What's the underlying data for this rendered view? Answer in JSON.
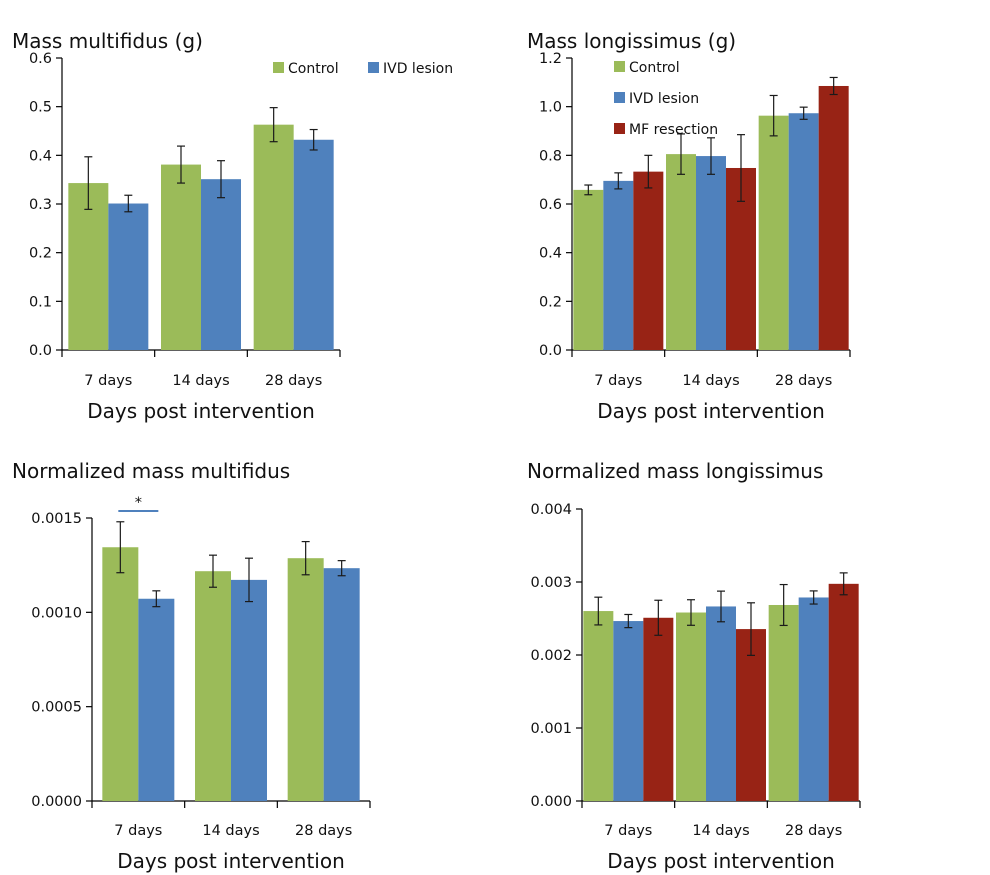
{
  "colors": {
    "control": "#9bbb59",
    "ivd_lesion": "#4f81bd",
    "mf_resection": "#982315",
    "significance_bar": "#4f81bd"
  },
  "chart_data": [
    {
      "type": "bar",
      "title": "Mass multifidus (g)",
      "xlabel": "Days post intervention",
      "ylabel": "",
      "categories": [
        "7 days",
        "14 days",
        "28 days"
      ],
      "ylim": [
        0,
        0.6
      ],
      "yticks": [
        "0.0",
        "0.1",
        "0.2",
        "0.3",
        "0.4",
        "0.5",
        "0.6"
      ],
      "legend_position": "top-right, horizontal",
      "series": [
        {
          "name": "Control",
          "color_key": "control",
          "values": [
            0.343,
            0.381,
            0.463
          ],
          "errors": [
            0.054,
            0.038,
            0.035
          ]
        },
        {
          "name": "IVD lesion",
          "color_key": "ivd_lesion",
          "values": [
            0.301,
            0.351,
            0.432
          ],
          "errors": [
            0.017,
            0.038,
            0.021
          ]
        }
      ],
      "annotations": []
    },
    {
      "type": "bar",
      "title": "Mass longissimus (g)",
      "xlabel": "Days post intervention",
      "ylabel": "",
      "categories": [
        "7 days",
        "14 days",
        "28 days"
      ],
      "ylim": [
        0,
        1.2
      ],
      "yticks": [
        "0.0",
        "0.2",
        "0.4",
        "0.6",
        "0.8",
        "1.0",
        "1.2"
      ],
      "legend_position": "top-left, vertical",
      "series": [
        {
          "name": "Control",
          "color_key": "control",
          "values": [
            0.658,
            0.805,
            0.963
          ],
          "errors": [
            0.02,
            0.083,
            0.083
          ]
        },
        {
          "name": "IVD lesion",
          "color_key": "ivd_lesion",
          "values": [
            0.695,
            0.797,
            0.973
          ],
          "errors": [
            0.033,
            0.075,
            0.025
          ]
        },
        {
          "name": "MF resection",
          "color_key": "mf_resection",
          "values": [
            0.733,
            0.748,
            1.085
          ],
          "errors": [
            0.067,
            0.137,
            0.035
          ]
        }
      ],
      "annotations": []
    },
    {
      "type": "bar",
      "title": "Normalized mass multifidus",
      "xlabel": "Days post intervention",
      "ylabel": "",
      "categories": [
        "7 days",
        "14 days",
        "28 days"
      ],
      "ylim": [
        0,
        0.0015
      ],
      "yticks": [
        "0.0000",
        "0.0005",
        "0.0010",
        "0.0015"
      ],
      "legend_position": "none",
      "series": [
        {
          "name": "Control",
          "color_key": "control",
          "values": [
            0.001345,
            0.001218,
            0.001287
          ],
          "errors": [
            0.000135,
            8.5e-05,
            8.8e-05
          ]
        },
        {
          "name": "IVD lesion",
          "color_key": "ivd_lesion",
          "values": [
            0.001072,
            0.001172,
            0.001234
          ],
          "errors": [
            4.2e-05,
            0.000115,
            4e-05
          ]
        }
      ],
      "annotations": [
        {
          "text": "*",
          "category": "7 days"
        }
      ]
    },
    {
      "type": "bar",
      "title": "Normalized mass longissimus",
      "xlabel": "Days post intervention",
      "ylabel": "",
      "categories": [
        "7 days",
        "14 days",
        "28 days"
      ],
      "ylim": [
        0,
        0.004
      ],
      "yticks": [
        "0.000",
        "0.001",
        "0.002",
        "0.003",
        "0.004"
      ],
      "legend_position": "none",
      "series": [
        {
          "name": "Control",
          "color_key": "control",
          "values": [
            0.002602,
            0.002582,
            0.002685
          ],
          "errors": [
            0.00019,
            0.000175,
            0.00028
          ]
        },
        {
          "name": "IVD lesion",
          "color_key": "ivd_lesion",
          "values": [
            0.002465,
            0.002665,
            0.002788
          ],
          "errors": [
            9e-05,
            0.00021,
            9e-05
          ]
        },
        {
          "name": "MF resection",
          "color_key": "mf_resection",
          "values": [
            0.00251,
            0.002355,
            0.002975
          ],
          "errors": [
            0.00024,
            0.00036,
            0.00015
          ]
        }
      ],
      "annotations": []
    }
  ]
}
